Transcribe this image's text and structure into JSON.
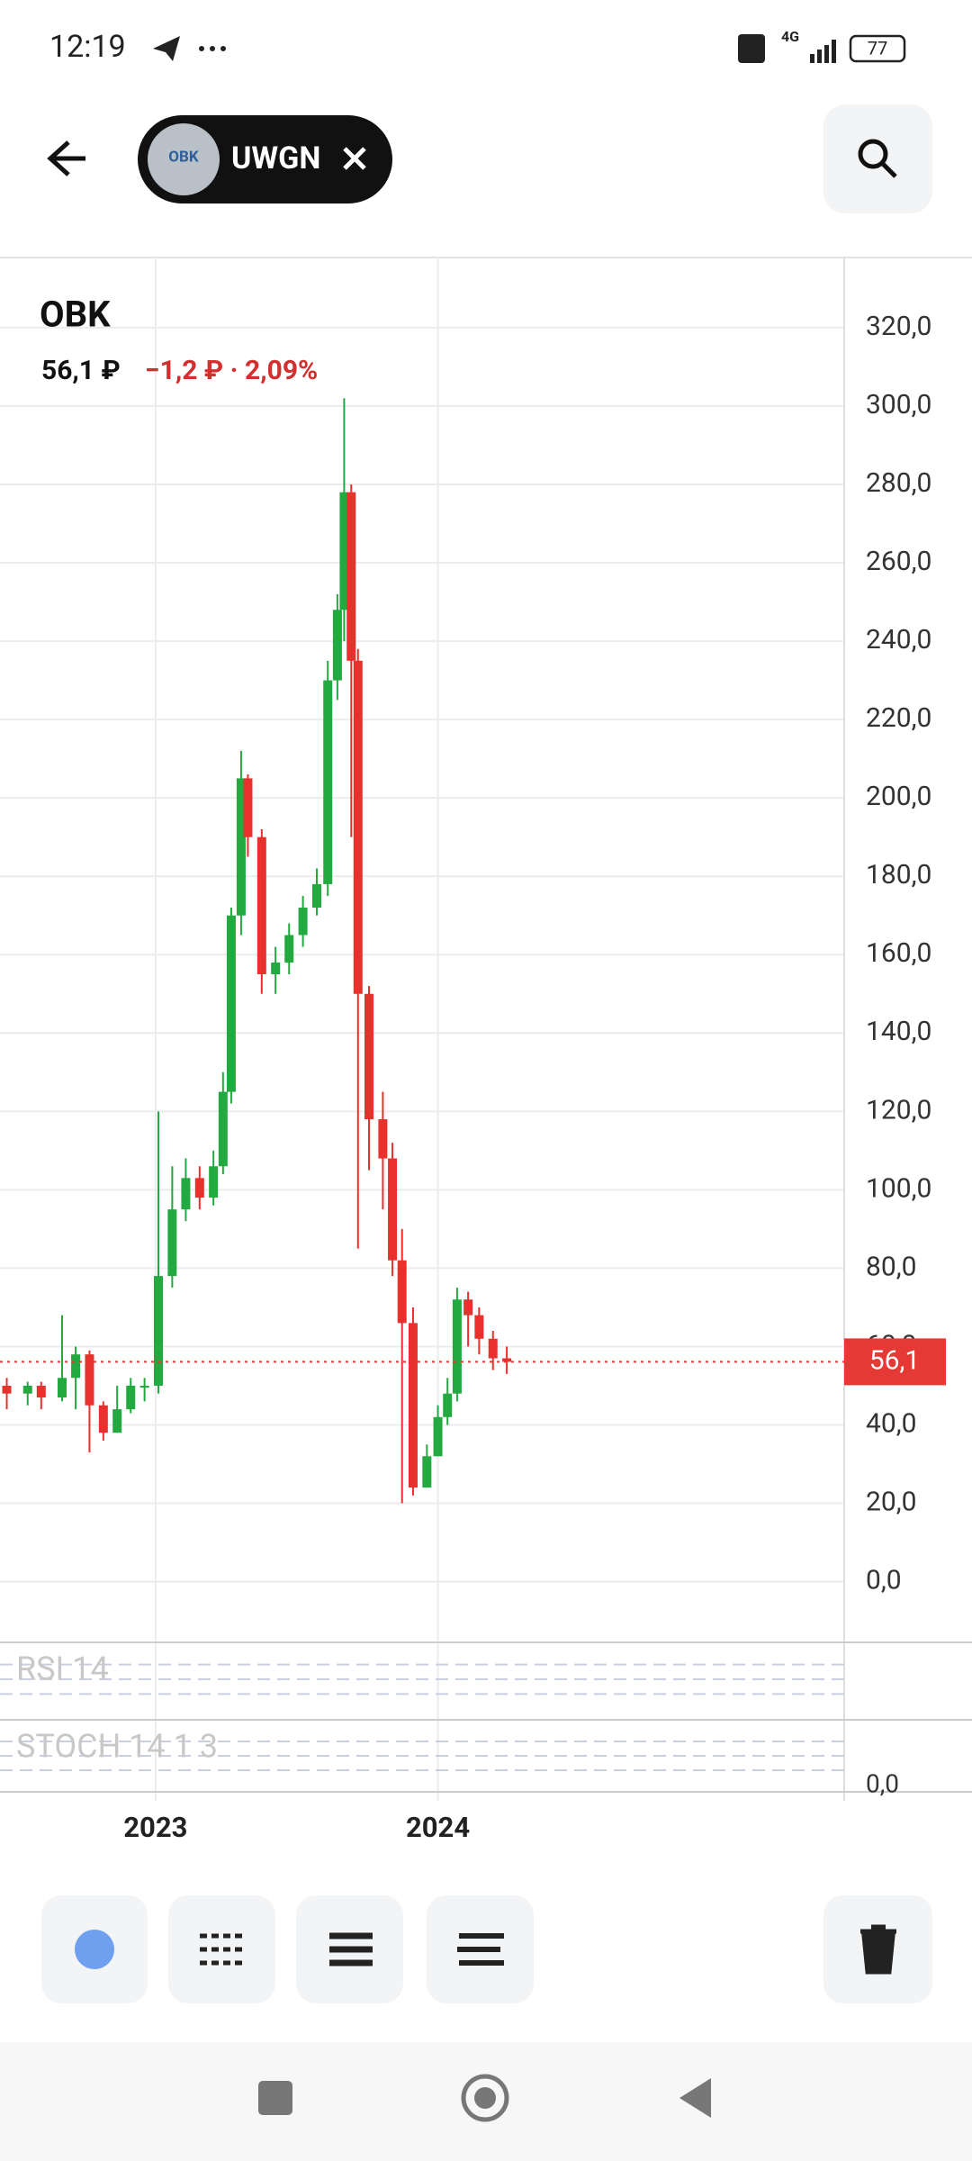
{
  "status_bar": {
    "time": "12:19",
    "network": "4G",
    "battery": "77"
  },
  "header": {
    "ticker": "UWGN",
    "logo": "OBK"
  },
  "chart_data": {
    "type": "candlestick",
    "title": "OBK",
    "price": "56,1 ₽",
    "change": "−1,2 ₽ · 2,09%",
    "x": [
      2022.473,
      2022.547,
      2022.595,
      2022.669,
      2022.717,
      2022.766,
      2022.815,
      2022.864,
      2022.912,
      2022.961,
      2023.01,
      2023.059,
      2023.107,
      2023.156,
      2023.205,
      2023.239,
      2023.268,
      2023.303,
      2023.327,
      2023.376,
      2023.425,
      2023.473,
      2023.522,
      2023.571,
      2023.61,
      2023.644,
      2023.668,
      2023.693,
      2023.717,
      2023.756,
      2023.805,
      2023.839,
      2023.873,
      2023.912,
      2023.961,
      2024.0,
      2024.034,
      2024.068,
      2024.107,
      2024.146,
      2024.195,
      2024.244
    ],
    "open": [
      50,
      48,
      50,
      47,
      52,
      58,
      45,
      38,
      44,
      50,
      50,
      78,
      95,
      103,
      98,
      106,
      125,
      170,
      205,
      190,
      155,
      158,
      165,
      172,
      178,
      230,
      248,
      278,
      235,
      150,
      118,
      108,
      82,
      66,
      24,
      32,
      42,
      48,
      72,
      68,
      62,
      57
    ],
    "high": [
      52,
      51,
      51,
      68,
      60,
      59,
      46,
      50,
      52,
      52,
      120,
      106,
      108,
      106,
      110,
      130,
      172,
      212,
      206,
      192,
      162,
      168,
      175,
      182,
      235,
      252,
      302,
      280,
      238,
      152,
      125,
      112,
      90,
      70,
      35,
      45,
      52,
      75,
      74,
      70,
      64,
      60
    ],
    "low": [
      44,
      45,
      44,
      46,
      44,
      33,
      36,
      38,
      43,
      46,
      48,
      75,
      92,
      95,
      96,
      104,
      122,
      165,
      185,
      150,
      150,
      155,
      162,
      170,
      175,
      225,
      240,
      190,
      85,
      105,
      95,
      78,
      20,
      22,
      24,
      32,
      40,
      46,
      60,
      58,
      54,
      53
    ],
    "close": [
      48,
      50,
      47,
      52,
      58,
      45,
      38,
      44,
      50,
      50,
      78,
      95,
      103,
      98,
      106,
      125,
      170,
      205,
      190,
      155,
      158,
      165,
      172,
      178,
      230,
      248,
      278,
      235,
      150,
      118,
      108,
      82,
      66,
      24,
      32,
      42,
      48,
      72,
      68,
      62,
      57,
      56.1
    ],
    "up_color": "#22a93f",
    "down_color": "#e8302c",
    "xlim": [
      2022.449,
      2025.439
    ],
    "xticks": [
      2023,
      2024
    ],
    "ylim": [
      -14.8,
      337.9
    ],
    "yticks": [
      {
        "value": 0,
        "label": "0,0"
      },
      {
        "value": 20,
        "label": "20,0"
      },
      {
        "value": 40,
        "label": "40,0"
      },
      {
        "value": 60,
        "label": "60,0"
      },
      {
        "value": 80,
        "label": "80,0"
      },
      {
        "value": 100,
        "label": "100,0"
      },
      {
        "value": 120,
        "label": "120,0"
      },
      {
        "value": 140,
        "label": "140,0"
      },
      {
        "value": 160,
        "label": "160,0"
      },
      {
        "value": 180,
        "label": "180,0"
      },
      {
        "value": 200,
        "label": "200,0"
      },
      {
        "value": 220,
        "label": "220,0"
      },
      {
        "value": 240,
        "label": "240,0"
      },
      {
        "value": 260,
        "label": "260,0"
      },
      {
        "value": 280,
        "label": "280,0"
      },
      {
        "value": 300,
        "label": "300,0"
      },
      {
        "value": 320,
        "label": "320,0"
      }
    ],
    "grid": true,
    "last_price": {
      "value": 56.1,
      "label": "56,1"
    },
    "indicators": [
      {
        "name": "RSI 14"
      },
      {
        "name": "STOCH 14 1 3",
        "ylim": [
          0,
          100
        ],
        "yticks": [
          {
            "value": 0,
            "label": "0,0"
          }
        ]
      }
    ]
  }
}
